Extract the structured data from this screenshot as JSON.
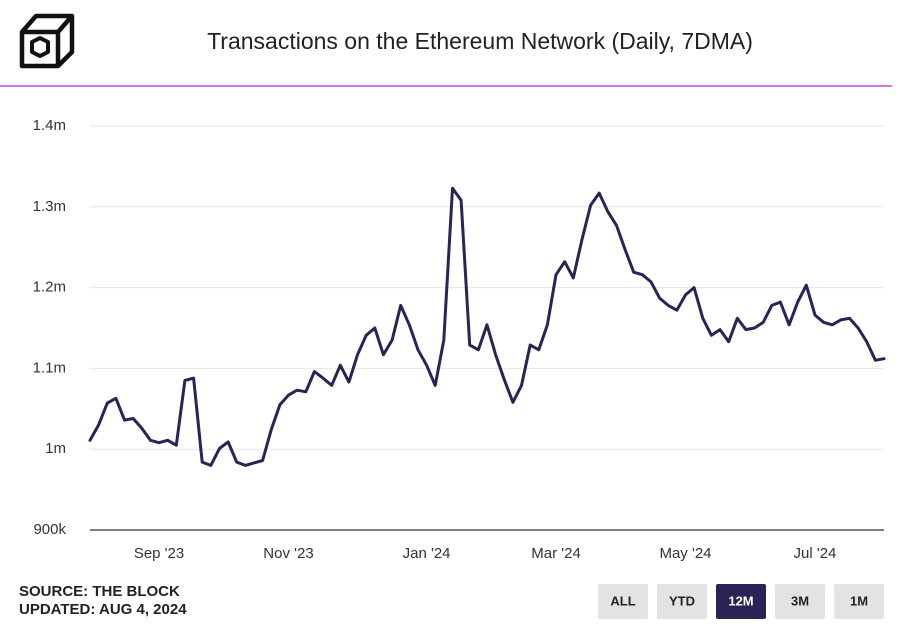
{
  "chart_data": {
    "type": "line",
    "title": "Transactions on the Ethereum Network (Daily, 7DMA)",
    "source": "SOURCE: THE BLOCK",
    "updated": "UPDATED: AUG 4, 2024",
    "categories": [
      null,
      null,
      null,
      null,
      null,
      null,
      null,
      null,
      "Sep '23",
      null,
      null,
      null,
      null,
      null,
      null,
      null,
      null,
      null,
      null,
      null,
      null,
      null,
      null,
      "Nov '23",
      null,
      null,
      null,
      null,
      null,
      null,
      null,
      null,
      null,
      null,
      null,
      null,
      null,
      null,
      null,
      "Jan '24",
      null,
      null,
      null,
      null,
      null,
      null,
      null,
      null,
      null,
      null,
      null,
      null,
      null,
      null,
      "Mar '24",
      null,
      null,
      null,
      null,
      null,
      null,
      null,
      null,
      null,
      null,
      null,
      null,
      null,
      null,
      "May '24",
      null,
      null,
      null,
      null,
      null,
      null,
      null,
      null,
      null,
      null,
      null,
      null,
      null,
      null,
      "Jul '24",
      null,
      null,
      null,
      null,
      null,
      null,
      null,
      null
    ],
    "series": [
      {
        "name": "Transactions",
        "color": "#2a2356",
        "values": [
          1011000,
          1030000,
          1057000,
          1063000,
          1036000,
          1038000,
          1026000,
          1011000,
          1008000,
          1011000,
          1005000,
          1085000,
          1088000,
          984000,
          980000,
          1001000,
          1009000,
          984000,
          980000,
          983000,
          986000,
          1024000,
          1055000,
          1067000,
          1073000,
          1071000,
          1096000,
          1088000,
          1079000,
          1104000,
          1083000,
          1117000,
          1141000,
          1150000,
          1117000,
          1135000,
          1178000,
          1154000,
          1123000,
          1104000,
          1079000,
          1135000,
          1323000,
          1308000,
          1129000,
          1123000,
          1154000,
          1117000,
          1086000,
          1058000,
          1079000,
          1129000,
          1123000,
          1154000,
          1216000,
          1232000,
          1212000,
          1259000,
          1302000,
          1317000,
          1294000,
          1277000,
          1247000,
          1219000,
          1216000,
          1207000,
          1187000,
          1178000,
          1172000,
          1191000,
          1200000,
          1162000,
          1141000,
          1148000,
          1133000,
          1162000,
          1148000,
          1150000,
          1157000,
          1178000,
          1182000,
          1154000,
          1182000,
          1203000,
          1166000,
          1157000,
          1154000,
          1160000,
          1162000,
          1150000,
          1133000,
          1110000,
          1112000
        ]
      }
    ],
    "ylim": [
      900000,
      1400000
    ],
    "yticks": [
      {
        "value": 900000,
        "label": "900k"
      },
      {
        "value": 1000000,
        "label": "1m"
      },
      {
        "value": 1100000,
        "label": "1.1m"
      },
      {
        "value": 1200000,
        "label": "1.2m"
      },
      {
        "value": 1300000,
        "label": "1.3m"
      },
      {
        "value": 1400000,
        "label": "1.4m"
      }
    ],
    "grid": true,
    "buttons": [
      "ALL",
      "YTD",
      "12M",
      "3M",
      "1M"
    ],
    "active_button": "12M"
  }
}
